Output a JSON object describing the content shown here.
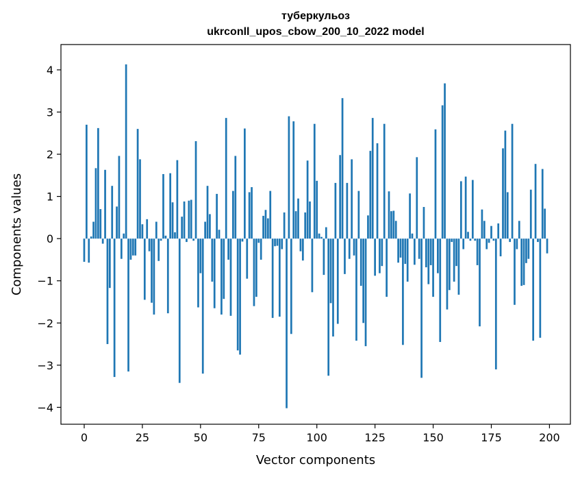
{
  "chart_data": {
    "type": "bar",
    "title": "туберкульоз",
    "subtitle": "ukrconll_upos_cbow_200_10_2022 model",
    "xlabel": "Vector components",
    "ylabel": "Components values",
    "xlim": [
      -10,
      209
    ],
    "ylim": [
      -4.4,
      4.6
    ],
    "xticks": [
      0,
      25,
      50,
      75,
      100,
      125,
      150,
      175,
      200
    ],
    "xtick_labels": [
      "0",
      "25",
      "50",
      "75",
      "100",
      "125",
      "150",
      "175",
      "200"
    ],
    "yticks": [
      -4,
      -3,
      -2,
      -1,
      0,
      1,
      2,
      3,
      4
    ],
    "ytick_labels": [
      "−4",
      "−3",
      "−2",
      "−1",
      "0",
      "1",
      "2",
      "3",
      "4"
    ],
    "bar_color": "#1f77b4",
    "grid": false,
    "legend": "none",
    "x": [
      0,
      1,
      2,
      3,
      4,
      5,
      6,
      7,
      8,
      9,
      10,
      11,
      12,
      13,
      14,
      15,
      16,
      17,
      18,
      19,
      20,
      21,
      22,
      23,
      24,
      25,
      26,
      27,
      28,
      29,
      30,
      31,
      32,
      33,
      34,
      35,
      36,
      37,
      38,
      39,
      40,
      41,
      42,
      43,
      44,
      45,
      46,
      47,
      48,
      49,
      50,
      51,
      52,
      53,
      54,
      55,
      56,
      57,
      58,
      59,
      60,
      61,
      62,
      63,
      64,
      65,
      66,
      67,
      68,
      69,
      70,
      71,
      72,
      73,
      74,
      75,
      76,
      77,
      78,
      79,
      80,
      81,
      82,
      83,
      84,
      85,
      86,
      87,
      88,
      89,
      90,
      91,
      92,
      93,
      94,
      95,
      96,
      97,
      98,
      99,
      100,
      101,
      102,
      103,
      104,
      105,
      106,
      107,
      108,
      109,
      110,
      111,
      112,
      113,
      114,
      115,
      116,
      117,
      118,
      119,
      120,
      121,
      122,
      123,
      124,
      125,
      126,
      127,
      128,
      129,
      130,
      131,
      132,
      133,
      134,
      135,
      136,
      137,
      138,
      139,
      140,
      141,
      142,
      143,
      144,
      145,
      146,
      147,
      148,
      149,
      150,
      151,
      152,
      153,
      154,
      155,
      156,
      157,
      158,
      159,
      160,
      161,
      162,
      163,
      164,
      165,
      166,
      167,
      168,
      169,
      170,
      171,
      172,
      173,
      174,
      175,
      176,
      177,
      178,
      179,
      180,
      181,
      182,
      183,
      184,
      185,
      186,
      187,
      188,
      189,
      190,
      191,
      192,
      193,
      194,
      195,
      196,
      197,
      198,
      199
    ],
    "values": [
      -0.55,
      2.7,
      -0.57,
      0.05,
      0.4,
      1.67,
      2.62,
      0.7,
      -0.12,
      1.63,
      -2.5,
      -1.17,
      1.25,
      -3.28,
      0.76,
      1.96,
      -0.48,
      0.12,
      4.13,
      -3.15,
      -0.5,
      -0.4,
      -0.4,
      2.6,
      1.88,
      0.34,
      -1.45,
      0.46,
      -0.3,
      -1.52,
      -1.8,
      0.4,
      -0.53,
      -0.05,
      1.53,
      0.07,
      -1.77,
      1.55,
      0.86,
      0.15,
      1.86,
      -3.42,
      0.52,
      0.88,
      -0.08,
      0.9,
      0.92,
      -0.05,
      2.31,
      -1.63,
      -0.82,
      -3.2,
      0.4,
      1.25,
      0.58,
      -1.02,
      -1.65,
      1.06,
      0.21,
      -1.8,
      -1.43,
      2.86,
      -0.5,
      -1.83,
      1.13,
      1.96,
      -2.65,
      -2.75,
      -0.07,
      2.61,
      -0.95,
      1.1,
      1.22,
      -1.6,
      -1.38,
      -0.1,
      -0.5,
      0.54,
      0.68,
      0.48,
      1.13,
      -1.88,
      -0.18,
      -0.17,
      -1.85,
      -0.25,
      0.62,
      -4.02,
      2.9,
      -2.26,
      2.78,
      0.65,
      0.95,
      -0.3,
      -0.52,
      0.62,
      1.85,
      0.88,
      -1.27,
      2.72,
      1.37,
      0.12,
      0.04,
      -0.86,
      0.27,
      -3.25,
      -1.53,
      -2.32,
      1.32,
      -2.02,
      1.98,
      3.33,
      -0.84,
      1.32,
      -0.48,
      1.88,
      -0.4,
      -2.42,
      1.13,
      -1.12,
      -2,
      -2.55,
      0.55,
      2.08,
      2.86,
      -0.88,
      2.26,
      -0.82,
      -0.65,
      2.72,
      -1.38,
      1.12,
      0.65,
      0.66,
      0.42,
      -0.57,
      -0.45,
      -2.52,
      -0.6,
      -1.02,
      1.07,
      0.12,
      -0.62,
      1.93,
      -0.48,
      -3.3,
      0.75,
      -0.68,
      -1.08,
      -0.63,
      -1.38,
      2.59,
      -0.82,
      -2.45,
      3.16,
      3.68,
      -1.68,
      -1.22,
      -0.08,
      -1.02,
      -0.65,
      -1.33,
      1.36,
      -0.25,
      1.47,
      0.16,
      -0.05,
      1.39,
      -0.05,
      -0.63,
      -2.08,
      0.69,
      0.42,
      -0.25,
      -0.1,
      0.3,
      -0.05,
      -3.1,
      0.36,
      -0.42,
      2.14,
      2.56,
      1.1,
      -0.08,
      2.72,
      -1.57,
      -0.25,
      0.42,
      -1.12,
      -1.1,
      -0.58,
      -0.48,
      1.16,
      -2.42,
      1.77,
      -0.08,
      -2.35,
      1.65,
      0.71,
      -0.35
    ]
  }
}
